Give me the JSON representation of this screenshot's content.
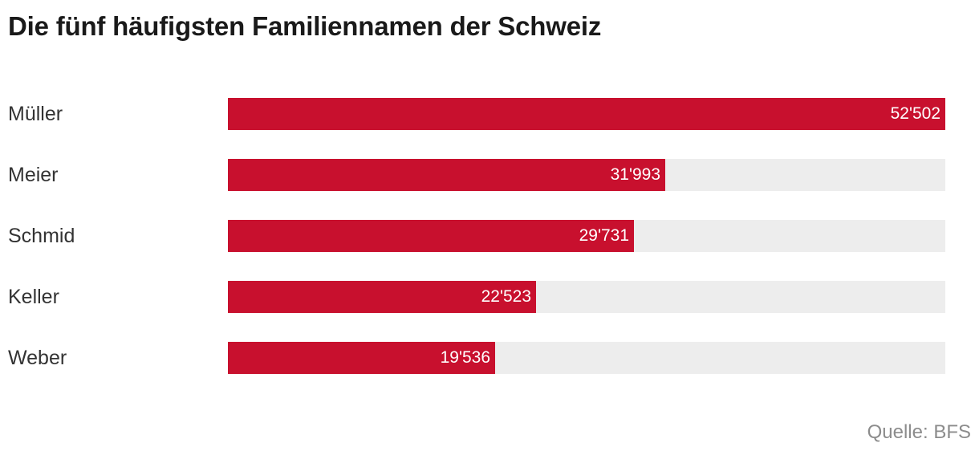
{
  "header": {
    "title": "Die fünf häufigsten Familiennamen der Schweiz"
  },
  "colors": {
    "bar": "#c8102e",
    "track": "#ededed",
    "value_text": "#ffffff"
  },
  "chart_data": {
    "type": "bar",
    "orientation": "horizontal",
    "title": "Die fünf häufigsten Familiennamen der Schweiz",
    "categories": [
      "Müller",
      "Meier",
      "Schmid",
      "Keller",
      "Weber"
    ],
    "values": [
      52502,
      31993,
      29731,
      22523,
      19536
    ],
    "value_labels": [
      "52'502",
      "31'993",
      "29'731",
      "22'523",
      "19'536"
    ],
    "xlim": [
      0,
      52502
    ],
    "xlabel": "",
    "ylabel": "",
    "grid": false,
    "legend": "none"
  },
  "footer": {
    "source": "Quelle: BFS"
  }
}
